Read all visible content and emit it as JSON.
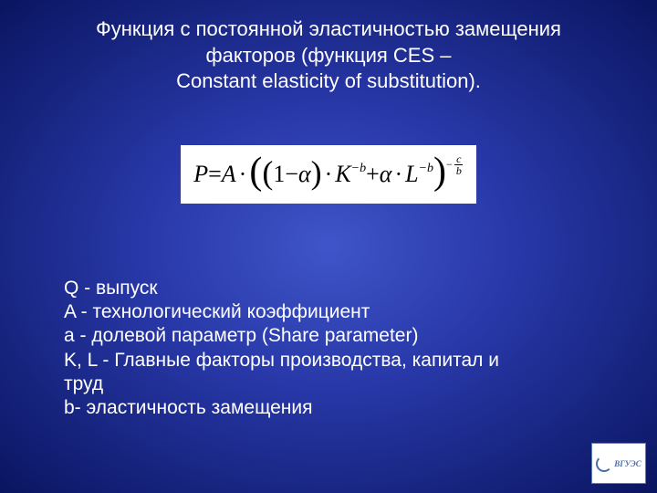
{
  "title": {
    "line1": "Функция с постоянной эластичностью замещения",
    "line2": "факторов (функция CES –",
    "line3": "Constant elasticity of substitution)."
  },
  "formula": {
    "P": "P",
    "eq": " = ",
    "A": "A",
    "dot": "·",
    "lp_big": "(",
    "lp": "(",
    "one": "1",
    "minus": " − ",
    "alpha": "α",
    "rp": ")",
    "K": "K",
    "exp_b": "−b",
    "plus": " + ",
    "L": "L",
    "rp_big": ")",
    "frac_minus": "−",
    "frac_num": "c",
    "frac_den": "b"
  },
  "definitions": {
    "d1": "Q - выпуск",
    "d2": " A - технологический коэффициент",
    "d3": " a - долевой параметр (Share parameter)",
    "d4": " K, L - Главные факторы производства, капитал и",
    "d5": "труд",
    "d6": "b- эластичность замещения"
  },
  "logo": {
    "text": "ВГУЭС"
  }
}
